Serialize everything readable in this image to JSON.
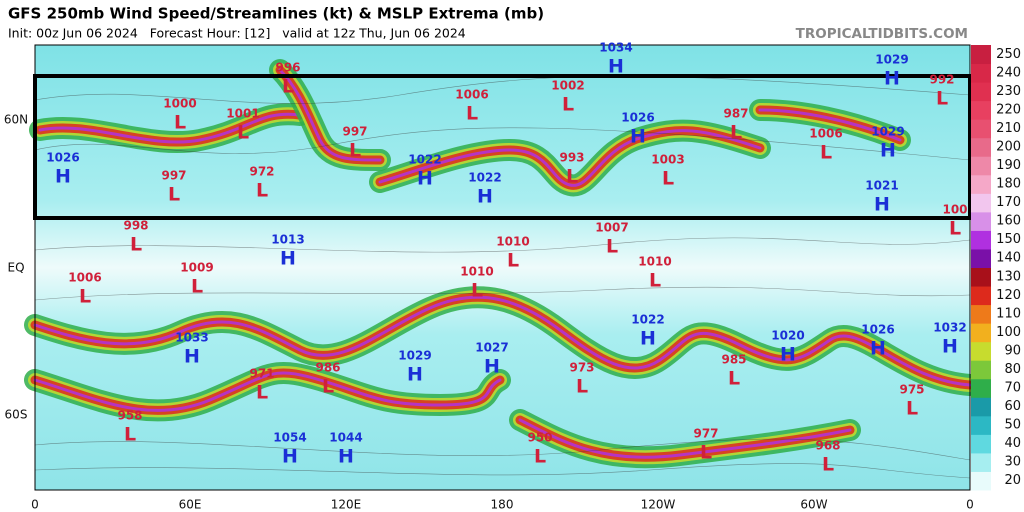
{
  "header": {
    "title": "GFS 250mb Wind Speed/Streamlines (kt) & MSLP Extrema (mb)",
    "subtitle": "Init: 00z Jun 06 2024   Forecast Hour: [12]   valid at 12z Thu, Jun 06 2024",
    "site": "TROPICALTIDBITS.COM"
  },
  "map": {
    "x_labels": [
      "0",
      "60E",
      "120E",
      "180",
      "120W",
      "60W",
      "0"
    ],
    "y_labels": [
      "60N",
      "EQ",
      "60S"
    ],
    "pressure_centers": [
      {
        "letter": "L",
        "value": 996
      },
      {
        "letter": "H",
        "value": 1034
      },
      {
        "letter": "H",
        "value": 1029
      },
      {
        "letter": "L",
        "value": 992
      },
      {
        "letter": "L",
        "value": 1000
      },
      {
        "letter": "L",
        "value": 1001
      },
      {
        "letter": "L",
        "value": 1006
      },
      {
        "letter": "L",
        "value": 1002
      },
      {
        "letter": "L",
        "value": 997
      },
      {
        "letter": "H",
        "value": 1026
      },
      {
        "letter": "L",
        "value": 987
      },
      {
        "letter": "L",
        "value": 1006
      },
      {
        "letter": "H",
        "value": 1029
      },
      {
        "letter": "H",
        "value": 1026
      },
      {
        "letter": "L",
        "value": 997
      },
      {
        "letter": "L",
        "value": 972
      },
      {
        "letter": "H",
        "value": 1022
      },
      {
        "letter": "H",
        "value": 1022
      },
      {
        "letter": "L",
        "value": 993
      },
      {
        "letter": "L",
        "value": 1003
      },
      {
        "letter": "H",
        "value": 1021
      },
      {
        "letter": "L",
        "value": 100
      },
      {
        "letter": "L",
        "value": 998
      },
      {
        "letter": "H",
        "value": 1013
      },
      {
        "letter": "L",
        "value": 1007
      },
      {
        "letter": "L",
        "value": 1010
      },
      {
        "letter": "L",
        "value": 1010
      },
      {
        "letter": "L",
        "value": 1009
      },
      {
        "letter": "L",
        "value": 1010
      },
      {
        "letter": "L",
        "value": 1006
      },
      {
        "letter": "H",
        "value": 1033
      },
      {
        "letter": "H",
        "value": 1022
      },
      {
        "letter": "H",
        "value": 1029
      },
      {
        "letter": "H",
        "value": 1027
      },
      {
        "letter": "H",
        "value": 1020
      },
      {
        "letter": "H",
        "value": 1026
      },
      {
        "letter": "H",
        "value": 1032
      },
      {
        "letter": "L",
        "value": 971
      },
      {
        "letter": "L",
        "value": 986
      },
      {
        "letter": "L",
        "value": 973
      },
      {
        "letter": "L",
        "value": 985
      },
      {
        "letter": "L",
        "value": 975
      },
      {
        "letter": "L",
        "value": 958
      },
      {
        "letter": "H",
        "value": 1054
      },
      {
        "letter": "H",
        "value": 1044
      },
      {
        "letter": "L",
        "value": 950
      },
      {
        "letter": "L",
        "value": 977
      },
      {
        "letter": "L",
        "value": 968
      }
    ]
  },
  "colorbar": {
    "ticks": [
      20,
      30,
      40,
      50,
      60,
      70,
      80,
      90,
      100,
      110,
      120,
      130,
      140,
      150,
      160,
      170,
      180,
      190,
      200,
      210,
      220,
      230,
      240,
      250
    ],
    "colors": [
      "#e8fbfb",
      "#a6eef0",
      "#5fd9e0",
      "#2cb8c4",
      "#1a9aa8",
      "#2fae4a",
      "#7cc83a",
      "#c7dc2e",
      "#f2b01e",
      "#ee7a1a",
      "#dd2a1c",
      "#a8101a",
      "#7a10a8",
      "#b030e0",
      "#d890e8",
      "#f2c6ee",
      "#f5a8c8",
      "#ee88a8",
      "#e86a8a",
      "#e85070",
      "#e84060",
      "#e03050",
      "#d82848",
      "#c81f40"
    ],
    "high_color": "#1a2fd6",
    "low_color": "#d0203a"
  }
}
